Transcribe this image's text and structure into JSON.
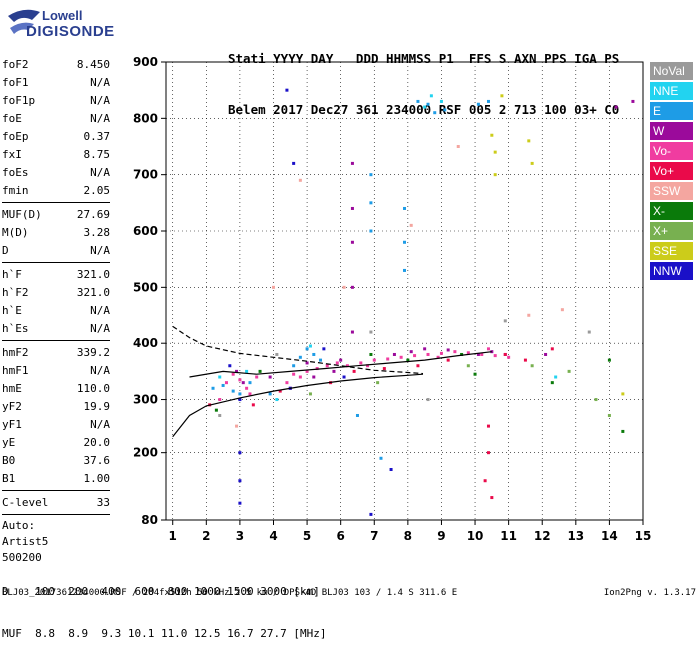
{
  "logo": {
    "line1": "Lowell",
    "line2": "DIGISONDE"
  },
  "header": {
    "row1": "Stati YYYY DAY   DDD HHMMSS P1  FFS S AXN PPS IGA PS",
    "row2": "Belem 2017 Dec27 361 234000 RSF 005 2 713 100 03+ C0"
  },
  "params": {
    "group1": [
      {
        "name": "foF2",
        "value": "8.450"
      },
      {
        "name": "foF1",
        "value": "N/A"
      },
      {
        "name": "foF1p",
        "value": "N/A"
      },
      {
        "name": "foE",
        "value": "N/A"
      },
      {
        "name": "foEp",
        "value": "0.37"
      },
      {
        "name": "fxI",
        "value": "8.75"
      },
      {
        "name": "foEs",
        "value": "N/A"
      },
      {
        "name": "fmin",
        "value": "2.05"
      }
    ],
    "group2": [
      {
        "name": "MUF(D)",
        "value": "27.69"
      },
      {
        "name": "M(D)",
        "value": "3.28"
      },
      {
        "name": "D",
        "value": "N/A"
      }
    ],
    "group3": [
      {
        "name": "h`F",
        "value": "321.0"
      },
      {
        "name": "h`F2",
        "value": "321.0"
      },
      {
        "name": "h`E",
        "value": "N/A"
      },
      {
        "name": "h`Es",
        "value": "N/A"
      }
    ],
    "group4": [
      {
        "name": "hmF2",
        "value": "339.2"
      },
      {
        "name": "hmF1",
        "value": "N/A"
      },
      {
        "name": "hmE",
        "value": "110.0"
      },
      {
        "name": "yF2",
        "value": "19.9"
      },
      {
        "name": "yF1",
        "value": "N/A"
      },
      {
        "name": "yE",
        "value": "20.0"
      },
      {
        "name": "B0",
        "value": "37.6"
      },
      {
        "name": "B1",
        "value": "1.00"
      }
    ],
    "group5": [
      {
        "name": "C-level",
        "value": "33"
      }
    ],
    "auto_label": "Auto:",
    "auto_name": "Artist5",
    "auto_version": "500200"
  },
  "legend": [
    {
      "label": "NoVal",
      "color": "#9a9a9a"
    },
    {
      "label": "NNE",
      "color": "#22d3f0"
    },
    {
      "label": "E",
      "color": "#1e9ce6"
    },
    {
      "label": "W",
      "color": "#9b0a9b"
    },
    {
      "label": "Vo-",
      "color": "#f03ca0"
    },
    {
      "label": "Vo+",
      "color": "#ea0a4a"
    },
    {
      "label": "SSW",
      "color": "#f4a6a0"
    },
    {
      "label": "X-",
      "color": "#0a7a0a"
    },
    {
      "label": "X+",
      "color": "#78b050"
    },
    {
      "label": "SSE",
      "color": "#cccc1a"
    },
    {
      "label": "NNW",
      "color": "#1a10c8"
    }
  ],
  "chart_data": {
    "type": "scatter",
    "xlim": [
      0.8,
      15
    ],
    "ylim": [
      80,
      900
    ],
    "x_ticks": [
      "1",
      "2",
      "3",
      "4",
      "5",
      "6",
      "7",
      "8",
      "9",
      "10",
      "11",
      "12",
      "13",
      "14",
      "15"
    ],
    "y_ticks": [
      "900",
      "800",
      "700",
      "600",
      "500",
      "400",
      "300",
      "200",
      "80"
    ],
    "y_tick_values": [
      900,
      800,
      700,
      600,
      500,
      400,
      300,
      200,
      80
    ],
    "grid": true,
    "series": [
      {
        "color": "#f03ca0",
        "points": [
          [
            2.6,
            330
          ],
          [
            2.8,
            345
          ],
          [
            3.0,
            335
          ],
          [
            3.2,
            320
          ],
          [
            3.5,
            340
          ],
          [
            4.4,
            330
          ],
          [
            4.6,
            345
          ],
          [
            5.0,
            350
          ],
          [
            5.3,
            355
          ],
          [
            5.6,
            360
          ],
          [
            6.2,
            360
          ],
          [
            6.6,
            365
          ],
          [
            7.0,
            370
          ],
          [
            7.4,
            372
          ],
          [
            7.8,
            375
          ],
          [
            8.2,
            378
          ],
          [
            8.6,
            380
          ],
          [
            9.0,
            382
          ],
          [
            9.4,
            385
          ],
          [
            9.8,
            383
          ],
          [
            10.2,
            380
          ],
          [
            10.6,
            378
          ],
          [
            11.0,
            375
          ],
          [
            3.3,
            310
          ],
          [
            2.4,
            300
          ],
          [
            4.8,
            340
          ],
          [
            5.9,
            365
          ],
          [
            6.8,
            360
          ],
          [
            8.9,
            375
          ],
          [
            10.4,
            390
          ]
        ]
      },
      {
        "color": "#9b0a9b",
        "points": [
          [
            2.9,
            350
          ],
          [
            3.1,
            330
          ],
          [
            3.9,
            340
          ],
          [
            4.5,
            320
          ],
          [
            5.0,
            365
          ],
          [
            5.2,
            340
          ],
          [
            5.8,
            350
          ],
          [
            6.0,
            370
          ],
          [
            6.35,
            420
          ],
          [
            6.35,
            500
          ],
          [
            6.35,
            580
          ],
          [
            6.35,
            640
          ],
          [
            6.35,
            720
          ],
          [
            7.6,
            380
          ],
          [
            8.1,
            385
          ],
          [
            8.5,
            390
          ],
          [
            9.2,
            388
          ],
          [
            10.1,
            380
          ],
          [
            10.5,
            385
          ],
          [
            10.9,
            380
          ],
          [
            12.1,
            380
          ],
          [
            14.2,
            820
          ],
          [
            14.7,
            830
          ]
        ]
      },
      {
        "color": "#1e9ce6",
        "points": [
          [
            2.2,
            320
          ],
          [
            2.5,
            325
          ],
          [
            2.8,
            315
          ],
          [
            3.0,
            310
          ],
          [
            3.3,
            330
          ],
          [
            4.6,
            360
          ],
          [
            4.8,
            375
          ],
          [
            5.0,
            390
          ],
          [
            5.2,
            380
          ],
          [
            5.4,
            370
          ],
          [
            3.9,
            310
          ],
          [
            6.9,
            600
          ],
          [
            6.9,
            650
          ],
          [
            6.9,
            700
          ],
          [
            7.9,
            530
          ],
          [
            7.9,
            580
          ],
          [
            7.9,
            640
          ],
          [
            8.3,
            830
          ],
          [
            8.6,
            825
          ],
          [
            8.8,
            810
          ],
          [
            9.1,
            815
          ],
          [
            10.1,
            825
          ],
          [
            10.4,
            830
          ],
          [
            6.5,
            270
          ],
          [
            7.2,
            190
          ]
        ]
      },
      {
        "color": "#ea0a4a",
        "points": [
          [
            2.1,
            290
          ],
          [
            3.4,
            290
          ],
          [
            4.2,
            315
          ],
          [
            5.7,
            330
          ],
          [
            6.4,
            350
          ],
          [
            7.3,
            355
          ],
          [
            8.3,
            360
          ],
          [
            9.2,
            370
          ],
          [
            10.4,
            250
          ],
          [
            10.4,
            200
          ],
          [
            10.3,
            150
          ],
          [
            10.5,
            120
          ],
          [
            10.9,
            380
          ],
          [
            11.5,
            370
          ],
          [
            12.3,
            390
          ]
        ]
      },
      {
        "color": "#1a10c8",
        "points": [
          [
            2.7,
            360
          ],
          [
            3.0,
            300
          ],
          [
            3.0,
            200
          ],
          [
            3.0,
            150
          ],
          [
            3.0,
            110
          ],
          [
            4.4,
            850
          ],
          [
            4.6,
            720
          ],
          [
            4.5,
            320
          ],
          [
            5.5,
            390
          ],
          [
            7.5,
            170
          ],
          [
            6.1,
            340
          ],
          [
            6.9,
            90
          ]
        ]
      },
      {
        "color": "#22d3f0",
        "points": [
          [
            2.4,
            340
          ],
          [
            3.2,
            350
          ],
          [
            4.1,
            300
          ],
          [
            5.1,
            395
          ],
          [
            8.7,
            840
          ],
          [
            9.0,
            830
          ],
          [
            8.5,
            820
          ],
          [
            12.4,
            340
          ]
        ]
      },
      {
        "color": "#0a7a0a",
        "points": [
          [
            2.3,
            280
          ],
          [
            3.6,
            350
          ],
          [
            6.9,
            380
          ],
          [
            8.0,
            370
          ],
          [
            9.6,
            380
          ],
          [
            10.0,
            345
          ],
          [
            12.3,
            330
          ],
          [
            14.0,
            370
          ],
          [
            14.4,
            240
          ]
        ]
      },
      {
        "color": "#78b050",
        "points": [
          [
            5.1,
            310
          ],
          [
            7.1,
            330
          ],
          [
            9.8,
            360
          ],
          [
            11.7,
            360
          ],
          [
            12.8,
            350
          ],
          [
            13.6,
            300
          ],
          [
            14.0,
            270
          ]
        ]
      },
      {
        "color": "#cccc1a",
        "points": [
          [
            10.5,
            770
          ],
          [
            10.6,
            740
          ],
          [
            11.6,
            760
          ],
          [
            11.7,
            720
          ],
          [
            10.6,
            700
          ],
          [
            10.8,
            840
          ],
          [
            14.4,
            310
          ]
        ]
      },
      {
        "color": "#f4a6a0",
        "points": [
          [
            2.9,
            250
          ],
          [
            4.0,
            500
          ],
          [
            4.8,
            690
          ],
          [
            6.1,
            500
          ],
          [
            8.1,
            610
          ],
          [
            9.5,
            750
          ],
          [
            11.6,
            450
          ],
          [
            12.6,
            460
          ]
        ]
      },
      {
        "color": "#9a9a9a",
        "points": [
          [
            2.4,
            270
          ],
          [
            4.1,
            380
          ],
          [
            6.9,
            420
          ],
          [
            8.6,
            300
          ],
          [
            10.9,
            440
          ],
          [
            13.4,
            420
          ]
        ]
      }
    ],
    "curves": {
      "trace": [
        [
          1.5,
          340
        ],
        [
          2.5,
          350
        ],
        [
          3.5,
          345
        ],
        [
          4.5,
          350
        ],
        [
          5.5,
          355
        ],
        [
          6.5,
          360
        ],
        [
          7.5,
          365
        ],
        [
          8.5,
          370
        ],
        [
          9.5,
          378
        ],
        [
          10.5,
          385
        ]
      ],
      "profile_solid": [
        [
          1.0,
          230
        ],
        [
          1.5,
          270
        ],
        [
          2.0,
          288
        ],
        [
          3.0,
          303
        ],
        [
          4.0,
          315
        ],
        [
          5.0,
          325
        ],
        [
          6.0,
          333
        ],
        [
          7.0,
          339
        ],
        [
          8.0,
          343
        ],
        [
          8.45,
          345
        ]
      ],
      "profile_dashed": [
        [
          1.0,
          430
        ],
        [
          1.5,
          410
        ],
        [
          2.0,
          395
        ],
        [
          3.0,
          382
        ],
        [
          4.0,
          375
        ],
        [
          5.0,
          368
        ],
        [
          6.0,
          360
        ],
        [
          7.0,
          352
        ],
        [
          8.0,
          348
        ],
        [
          8.45,
          346
        ]
      ]
    }
  },
  "footer": {
    "d_row": "D    100  200  400  600  800 1000 1500 3000 [km]",
    "muf_row": "MUF  8.8  8.9  9.3 10.1 11.0 12.5 16.7 27.7 [MHz]",
    "info": "BLJ03_2017361234000.RSF / 284fx512h 50 kHz 2.5 km / DPS-4D BLJ03 103 / 1.4 S 311.6 E",
    "version": "Ion2Png v. 1.3.17"
  }
}
